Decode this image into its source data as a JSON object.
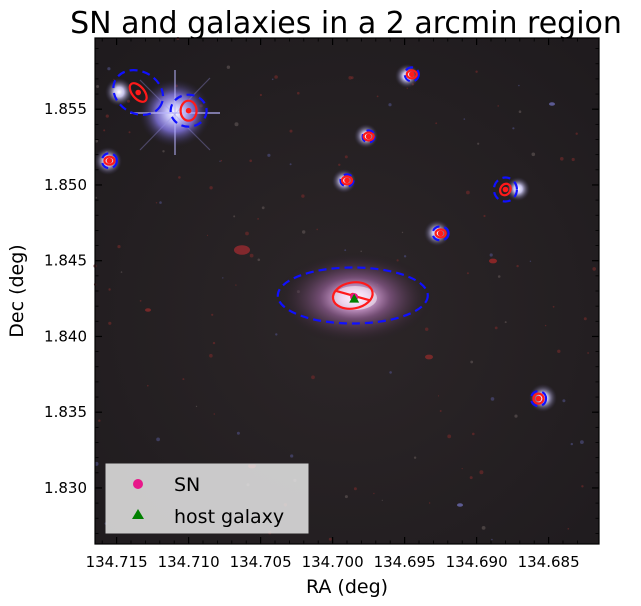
{
  "chart_data": {
    "type": "scatter",
    "title": "SN and galaxies in a 2 arcmin region",
    "xlabel": "RA (deg)",
    "ylabel": "Dec (deg)",
    "xlim": [
      134.7165,
      134.6815
    ],
    "ylim": [
      1.8263,
      1.8597
    ],
    "x_inverted": true,
    "x_ticks": [
      134.715,
      134.71,
      134.705,
      134.7,
      134.695,
      134.69,
      134.685
    ],
    "x_tick_labels": [
      "134.715",
      "134.710",
      "134.705",
      "134.700",
      "134.695",
      "134.690",
      "134.685"
    ],
    "y_ticks": [
      1.83,
      1.835,
      1.84,
      1.845,
      1.85,
      1.855
    ],
    "y_tick_labels": [
      "1.830",
      "1.835",
      "1.840",
      "1.845",
      "1.850",
      "1.855"
    ],
    "grid": false,
    "legend": {
      "placement": "lower-left",
      "entries": [
        {
          "label": "SN",
          "marker": "circle",
          "color": "#e8178a"
        },
        {
          "label": "host galaxy",
          "marker": "triangle",
          "color": "#008000"
        }
      ]
    },
    "series": [
      {
        "name": "SN",
        "points": [
          {
            "ra": 134.6985,
            "dec": 1.8426
          }
        ]
      },
      {
        "name": "host galaxy",
        "points": [
          {
            "ra": 134.6985,
            "dec": 1.8425
          }
        ]
      }
    ],
    "galaxy_ellipses": [
      {
        "ra": 134.6986,
        "dec": 1.8427,
        "outline": "dashed",
        "color": "#1010ff"
      },
      {
        "ra": 134.6986,
        "dec": 1.8427,
        "outline": "solid",
        "color": "#ff1a1a"
      },
      {
        "ra": 134.71,
        "dec": 1.8549,
        "outline": "dashed",
        "color": "#1010ff"
      },
      {
        "ra": 134.71,
        "dec": 1.8549,
        "outline": "solid",
        "color": "#ff1a1a"
      },
      {
        "ra": 134.7135,
        "dec": 1.8561,
        "outline": "dashed",
        "color": "#1010ff"
      },
      {
        "ra": 134.7135,
        "dec": 1.8561,
        "outline": "solid",
        "color": "#ff1a1a"
      },
      {
        "ra": 134.7155,
        "dec": 1.8516,
        "outline": "dashed",
        "color": "#1010ff"
      },
      {
        "ra": 134.7155,
        "dec": 1.8516,
        "outline": "solid",
        "color": "#ff1a1a"
      },
      {
        "ra": 134.6945,
        "dec": 1.8573,
        "outline": "dashed",
        "color": "#1010ff"
      },
      {
        "ra": 134.6945,
        "dec": 1.8573,
        "outline": "solid",
        "color": "#ff1a1a"
      },
      {
        "ra": 134.6975,
        "dec": 1.8532,
        "outline": "dashed",
        "color": "#1010ff"
      },
      {
        "ra": 134.6975,
        "dec": 1.8532,
        "outline": "solid",
        "color": "#ff1a1a"
      },
      {
        "ra": 134.699,
        "dec": 1.8503,
        "outline": "dashed",
        "color": "#1010ff"
      },
      {
        "ra": 134.699,
        "dec": 1.8503,
        "outline": "solid",
        "color": "#ff1a1a"
      },
      {
        "ra": 134.6925,
        "dec": 1.8468,
        "outline": "dashed",
        "color": "#1010ff"
      },
      {
        "ra": 134.6925,
        "dec": 1.8468,
        "outline": "solid",
        "color": "#ff1a1a"
      },
      {
        "ra": 134.688,
        "dec": 1.8497,
        "outline": "dashed",
        "color": "#1010ff"
      },
      {
        "ra": 134.688,
        "dec": 1.8497,
        "outline": "solid",
        "color": "#ff1a1a"
      },
      {
        "ra": 134.6857,
        "dec": 1.8359,
        "outline": "dashed",
        "color": "#1010ff"
      },
      {
        "ra": 134.6857,
        "dec": 1.8359,
        "outline": "solid",
        "color": "#ff1a1a"
      }
    ]
  }
}
